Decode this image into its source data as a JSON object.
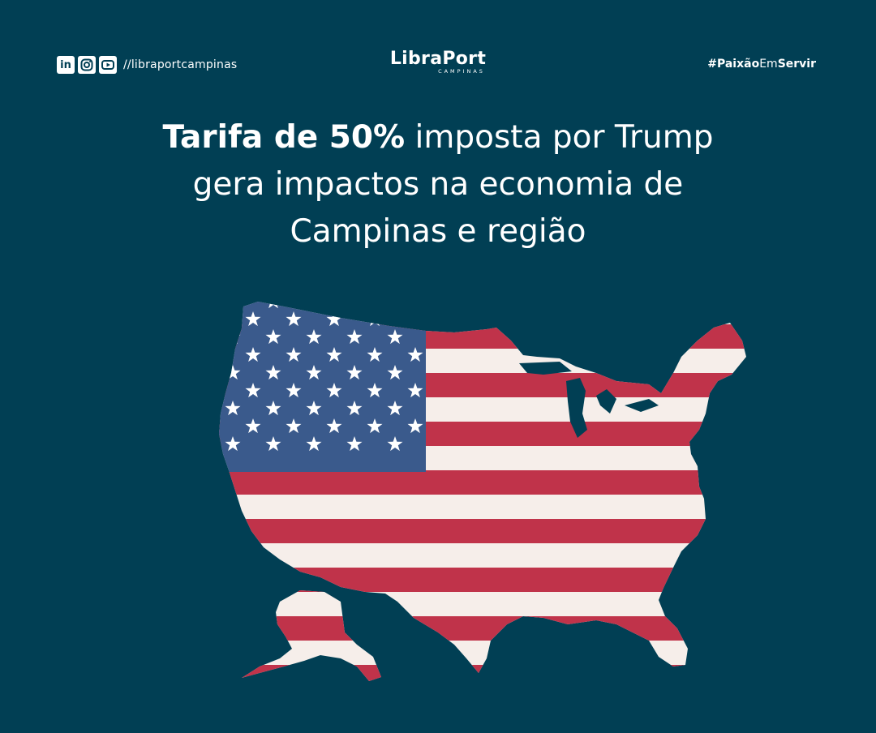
{
  "header": {
    "social_handle": "//libraportcampinas",
    "icons": [
      "linkedin-icon",
      "instagram-icon",
      "youtube-icon"
    ],
    "logo_main": "LibraPort",
    "logo_sub": "CAMPINAS",
    "hashtag_part1": "#Paixão",
    "hashtag_part2": "Em",
    "hashtag_part3": "Servir"
  },
  "headline": {
    "bold": "Tarifa de 50%",
    "line1_rest": " imposta por Trump",
    "line2": "gera impactos na economia de",
    "line3": "Campinas e região"
  },
  "colors": {
    "background": "#013f54",
    "flag_blue": "#3a5a8c",
    "flag_red": "#c0334a",
    "flag_white": "#f6eeea"
  },
  "illustration": "usa-flag-map"
}
